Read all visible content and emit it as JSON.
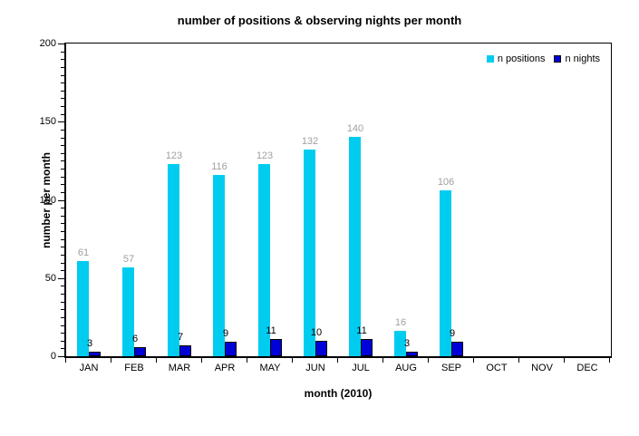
{
  "chart_data": {
    "type": "bar",
    "title": "number of positions & observing nights per month",
    "xlabel": "month (2010)",
    "ylabel": "number per month",
    "categories": [
      "JAN",
      "FEB",
      "MAR",
      "APR",
      "MAY",
      "JUN",
      "JUL",
      "AUG",
      "SEP",
      "OCT",
      "NOV",
      "DEC"
    ],
    "series": [
      {
        "name": "n positions",
        "color": "#00ccf0",
        "label_color": "#a0a0a0",
        "bordered": false,
        "values": [
          61,
          57,
          123,
          116,
          123,
          132,
          140,
          16,
          106,
          0,
          0,
          0
        ]
      },
      {
        "name": "n nights",
        "color": "#0000d8",
        "label_color": "#000000",
        "bordered": true,
        "values": [
          3,
          6,
          7,
          9,
          11,
          10,
          11,
          3,
          9,
          0,
          0,
          0
        ]
      }
    ],
    "ylim": [
      0,
      200
    ],
    "yticks": [
      0,
      50,
      100,
      150,
      200
    ],
    "minor_tick_interval": 5,
    "grid": false,
    "legend_position": "top-right",
    "show_values": true,
    "axis_color": "#000000",
    "background_color": "#ffffff"
  }
}
